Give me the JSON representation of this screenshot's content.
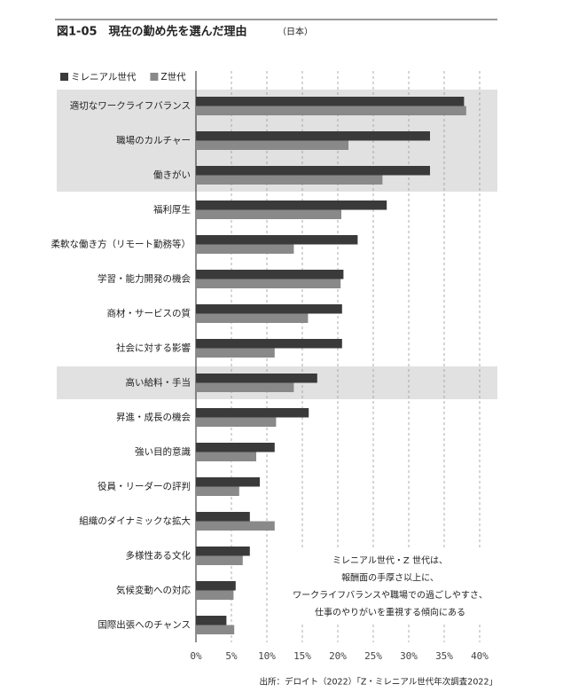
{
  "chart_data": {
    "type": "hbar",
    "title": "図1-05　現在の勤め先を選んだ理由",
    "subtitle": "（日本）",
    "source": "出所：デロイト（2022）「Z・ミレニアル世代年次調査2022」",
    "annotation": [
      "ミレニアル世代・Z 世代は、",
      "報酬面の手厚さ以上に、",
      "ワークライフバランスや職場での過ごしやすさ、",
      "仕事のやりがいを重視する傾向にある"
    ],
    "categories": [
      "適切なワークライフバランス",
      "職場のカルチャー",
      "働きがい",
      "福利厚生",
      "柔軟な働き方（リモート勤務等）",
      "学習・能力開発の機会",
      "商材・サービスの質",
      "社会に対する影響",
      "高い給料・手当",
      "昇進・成長の機会",
      "強い目的意識",
      "役員・リーダーの評判",
      "組織のダイナミックな拡大",
      "多様性ある文化",
      "気候変動への対応",
      "国際出張へのチャンス"
    ],
    "series": [
      {
        "name": "ミレニアル世代",
        "color": "#3a3a3a",
        "values": [
          37.8,
          33.0,
          33.0,
          26.9,
          22.8,
          20.8,
          20.6,
          20.6,
          17.1,
          15.9,
          11.1,
          9.0,
          7.6,
          7.6,
          5.6,
          4.3
        ]
      },
      {
        "name": "Z世代",
        "color": "#898989",
        "values": [
          38.1,
          21.5,
          26.3,
          20.5,
          13.8,
          20.4,
          15.8,
          11.1,
          13.8,
          11.3,
          8.5,
          6.1,
          11.1,
          6.6,
          5.3,
          5.4
        ]
      }
    ],
    "highlight": [
      0,
      1,
      2,
      8
    ],
    "highlight_color": "#e1e1e1",
    "xlim": [
      0,
      40
    ],
    "xticks": [
      {
        "value": 0,
        "label": "0%"
      },
      {
        "value": 5,
        "label": "5%"
      },
      {
        "value": 10,
        "label": "10%"
      },
      {
        "value": 15,
        "label": "15%"
      },
      {
        "value": 20,
        "label": "20%"
      },
      {
        "value": 25,
        "label": "25%"
      },
      {
        "value": 30,
        "label": "30%"
      },
      {
        "value": 35,
        "label": "35%"
      },
      {
        "value": 40,
        "label": "40%"
      }
    ],
    "grid": true,
    "legend": "top-left"
  }
}
